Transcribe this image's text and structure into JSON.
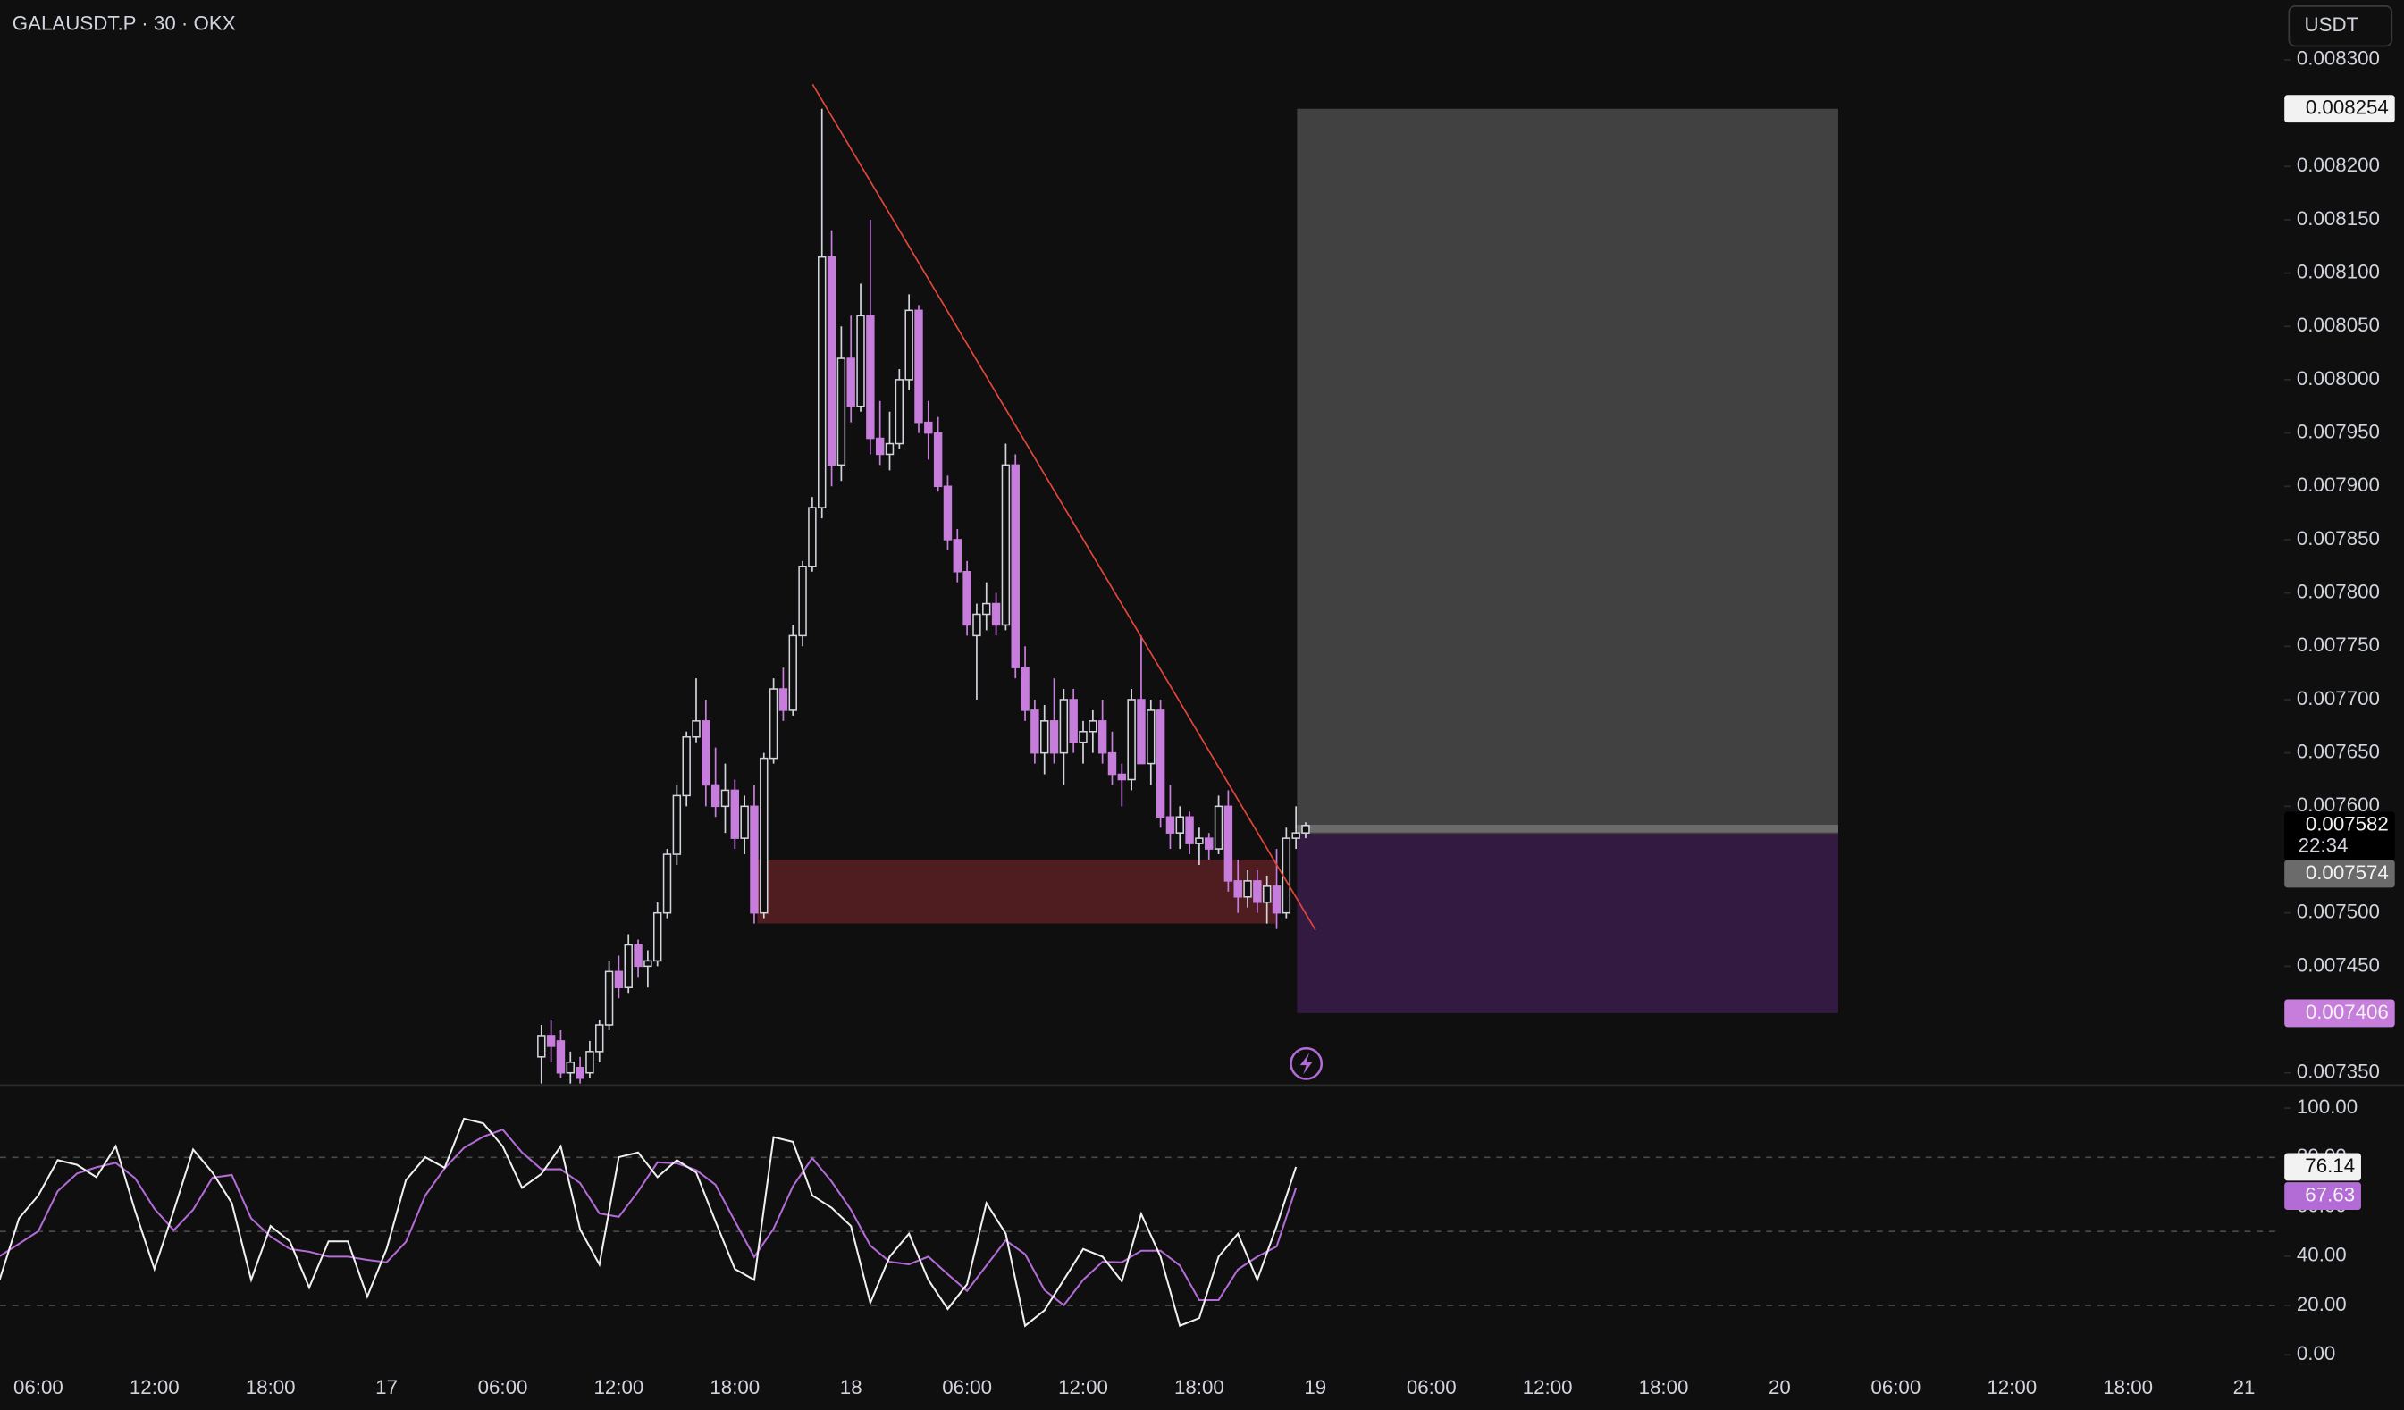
{
  "chart_data": [
    {
      "type": "candlestick",
      "title": "GALAUSDT.P · 30 · OKX",
      "currency": "USDT",
      "x_labels": [
        "06:00",
        "12:00",
        "18:00",
        "17",
        "06:00",
        "12:00",
        "18:00",
        "18",
        "06:00",
        "12:00",
        "18:00",
        "19",
        "06:00",
        "12:00",
        "18:00",
        "20",
        "06:00",
        "12:00",
        "18:00",
        "21"
      ],
      "open": [
        0.007365,
        0.007385,
        0.00738,
        0.00735,
        0.007355,
        0.00735,
        0.00737,
        0.007395,
        0.007445,
        0.00743,
        0.00747,
        0.00745,
        0.007455,
        0.0075,
        0.007555,
        0.00761,
        0.007665,
        0.00768,
        0.00762,
        0.0076,
        0.007615,
        0.00757,
        0.0076,
        0.0075,
        0.007645,
        0.00771,
        0.00769,
        0.00776,
        0.007825,
        0.00788,
        0.008115,
        0.00792,
        0.00802,
        0.007975,
        0.00806,
        0.007945,
        0.00793,
        0.00794,
        0.008,
        0.008065,
        0.00796,
        0.00795,
        0.0079,
        0.00785,
        0.00782,
        0.00776,
        0.00778,
        0.00779,
        0.00777,
        0.00792,
        0.00773,
        0.00769,
        0.00765,
        0.00768,
        0.00765,
        0.0077,
        0.00766,
        0.00767,
        0.00768,
        0.00765,
        0.00763,
        0.007625,
        0.0077,
        0.00764,
        0.00769,
        0.00759,
        0.007575,
        0.00759,
        0.007565,
        0.00757,
        0.00756,
        0.0076,
        0.00753,
        0.007515,
        0.00753,
        0.00751,
        0.007525,
        0.0075,
        0.00757,
        0.007575
      ],
      "high": [
        0.007395,
        0.0074,
        0.00739,
        0.00737,
        0.007365,
        0.00738,
        0.0074,
        0.007455,
        0.00746,
        0.00748,
        0.007475,
        0.007465,
        0.00751,
        0.00756,
        0.00762,
        0.00767,
        0.00772,
        0.0077,
        0.007655,
        0.00764,
        0.007625,
        0.00761,
        0.00762,
        0.00765,
        0.00772,
        0.00773,
        0.00777,
        0.00783,
        0.00789,
        0.008254,
        0.00814,
        0.00805,
        0.00806,
        0.00809,
        0.00815,
        0.00798,
        0.00797,
        0.00801,
        0.00808,
        0.00807,
        0.00798,
        0.007965,
        0.00791,
        0.00786,
        0.00783,
        0.00779,
        0.00781,
        0.0078,
        0.00794,
        0.00793,
        0.00775,
        0.0077,
        0.007695,
        0.00772,
        0.00771,
        0.00771,
        0.00768,
        0.00769,
        0.0077,
        0.00767,
        0.00764,
        0.00771,
        0.00776,
        0.0077,
        0.0077,
        0.00762,
        0.0076,
        0.007595,
        0.00758,
        0.007575,
        0.00761,
        0.007615,
        0.00755,
        0.00754,
        0.00754,
        0.007535,
        0.00756,
        0.00758,
        0.0076,
        0.007585
      ],
      "low": [
        0.00734,
        0.00736,
        0.007345,
        0.00734,
        0.00734,
        0.007345,
        0.00736,
        0.00739,
        0.00742,
        0.007425,
        0.00744,
        0.00743,
        0.00745,
        0.007495,
        0.007545,
        0.0076,
        0.00766,
        0.0076,
        0.00759,
        0.007575,
        0.00756,
        0.007555,
        0.00749,
        0.007495,
        0.00764,
        0.00768,
        0.007685,
        0.00775,
        0.00782,
        0.00787,
        0.0079,
        0.007905,
        0.00796,
        0.00797,
        0.00793,
        0.00792,
        0.007915,
        0.007935,
        0.00799,
        0.00795,
        0.007925,
        0.007895,
        0.00784,
        0.00781,
        0.00776,
        0.0077,
        0.007765,
        0.00776,
        0.007765,
        0.00772,
        0.00768,
        0.00764,
        0.00763,
        0.00764,
        0.00762,
        0.00765,
        0.00764,
        0.00765,
        0.00764,
        0.00762,
        0.0076,
        0.007615,
        0.00764,
        0.00762,
        0.00758,
        0.00756,
        0.00756,
        0.007555,
        0.007545,
        0.00755,
        0.007555,
        0.00752,
        0.0075,
        0.007505,
        0.0075,
        0.00749,
        0.007485,
        0.007495,
        0.00756,
        0.00757
      ],
      "close": [
        0.007385,
        0.007375,
        0.00735,
        0.00736,
        0.007345,
        0.00737,
        0.007395,
        0.007445,
        0.00743,
        0.00747,
        0.00745,
        0.007455,
        0.0075,
        0.007555,
        0.00761,
        0.007665,
        0.00768,
        0.00762,
        0.0076,
        0.007615,
        0.00757,
        0.0076,
        0.0075,
        0.007645,
        0.00771,
        0.00769,
        0.00776,
        0.007825,
        0.00788,
        0.008115,
        0.00792,
        0.00802,
        0.007975,
        0.00806,
        0.007945,
        0.00793,
        0.00794,
        0.008,
        0.008065,
        0.00796,
        0.00795,
        0.0079,
        0.00785,
        0.00782,
        0.00777,
        0.00778,
        0.00779,
        0.00777,
        0.00792,
        0.00773,
        0.00769,
        0.00765,
        0.00768,
        0.00765,
        0.0077,
        0.00766,
        0.00767,
        0.00768,
        0.00765,
        0.00763,
        0.007625,
        0.0077,
        0.00764,
        0.00769,
        0.00759,
        0.007575,
        0.00759,
        0.007565,
        0.00757,
        0.00756,
        0.0076,
        0.00753,
        0.007515,
        0.00753,
        0.00751,
        0.007525,
        0.0075,
        0.00757,
        0.007575,
        0.007582
      ],
      "up_color": "#d1d4dc",
      "down_color": "#c77ddb",
      "ylim": [
        0.00734,
        0.008356
      ],
      "yticks": [
        {
          "value": 0.00735,
          "label": "0.007350"
        },
        {
          "value": 0.0074,
          "label": "0.007400"
        },
        {
          "value": 0.00745,
          "label": "0.007450"
        },
        {
          "value": 0.0075,
          "label": "0.007500"
        },
        {
          "value": 0.00755,
          "label": "0.007550"
        },
        {
          "value": 0.0076,
          "label": "0.007600"
        },
        {
          "value": 0.00765,
          "label": "0.007650"
        },
        {
          "value": 0.0077,
          "label": "0.007700"
        },
        {
          "value": 0.00775,
          "label": "0.007750"
        },
        {
          "value": 0.0078,
          "label": "0.007800"
        },
        {
          "value": 0.00785,
          "label": "0.007850"
        },
        {
          "value": 0.0079,
          "label": "0.007900"
        },
        {
          "value": 0.00795,
          "label": "0.007950"
        },
        {
          "value": 0.008,
          "label": "0.008000"
        },
        {
          "value": 0.00805,
          "label": "0.008050"
        },
        {
          "value": 0.0081,
          "label": "0.008100"
        },
        {
          "value": 0.00815,
          "label": "0.008150"
        },
        {
          "value": 0.0082,
          "label": "0.008200"
        },
        {
          "value": 0.00825,
          "label": "0.008250"
        },
        {
          "value": 0.0083,
          "label": "0.008300"
        }
      ],
      "grid": false,
      "last_price": 0.007582,
      "countdown": "22:34",
      "position": {
        "take_profit": 0.008254,
        "entry": 0.007574,
        "stop": 0.007406,
        "profit_color": "#414141",
        "loss_color": "#321a40"
      },
      "zone": {
        "top": 0.00755,
        "bottom": 0.00749,
        "color": "#5a1e22"
      },
      "trendline": {
        "start": 0.008277,
        "end": 0.007484,
        "color": "#e0453b"
      }
    },
    {
      "type": "line",
      "ylim": [
        -3.7,
        109.3
      ],
      "yticks": [
        {
          "value": 0,
          "label": "0.00"
        },
        {
          "value": 20,
          "label": "20.00"
        },
        {
          "value": 40,
          "label": "40.00"
        },
        {
          "value": 60,
          "label": "60.00"
        },
        {
          "value": 80,
          "label": "80.00"
        },
        {
          "value": 100,
          "label": "100.00"
        }
      ],
      "levels": [
        20,
        50,
        80
      ],
      "series": [
        {
          "color": "#f0f0f0",
          "values": [
            30.4,
            55.3,
            64.6,
            78.9,
            77.0,
            72.0,
            84.5,
            58.4,
            34.8,
            58.4,
            83.2,
            73.9,
            61.5,
            30.4,
            52.2,
            46.0,
            27.3,
            46.0,
            46.0,
            23.6,
            42.9,
            70.8,
            80.1,
            75.8,
            95.7,
            93.8,
            84.5,
            67.7,
            73.3,
            84.5,
            50.9,
            36.6,
            80.1,
            82.0,
            72.0,
            78.9,
            73.9,
            54.0,
            34.8,
            30.4,
            88.2,
            86.3,
            64.6,
            59.6,
            52.2,
            21.1,
            39.8,
            49.1,
            30.4,
            18.6,
            28.6,
            61.5,
            49.1,
            11.8,
            18.0,
            30.4,
            42.9,
            39.8,
            29.8,
            57.1,
            39.8,
            11.8,
            14.9,
            39.8,
            49.1,
            30.4,
            52.2,
            76.14
          ]
        },
        {
          "color": "#b36bd6",
          "values": [
            40,
            45,
            50.1,
            66.3,
            73.5,
            76.0,
            77.8,
            71.6,
            59.2,
            50.5,
            58.8,
            71.8,
            72.9,
            55.3,
            48.0,
            42.9,
            41.8,
            39.8,
            39.8,
            38.5,
            37.5,
            45.8,
            64.6,
            75.6,
            83.9,
            88.4,
            91.3,
            82.0,
            75.2,
            75.2,
            69.6,
            57.3,
            55.9,
            66.2,
            78.0,
            77.6,
            74.9,
            68.9,
            54.2,
            39.7,
            51.1,
            68.3,
            79.7,
            70.2,
            58.8,
            44.3,
            37.7,
            36.7,
            39.8,
            32.7,
            25.9,
            36.2,
            46.4,
            40.8,
            26.3,
            20.1,
            30.4,
            37.7,
            37.5,
            42.2,
            42.2,
            36.2,
            22.2,
            22.2,
            34.6,
            39.8,
            43.9,
            67.63
          ]
        }
      ]
    }
  ]
}
